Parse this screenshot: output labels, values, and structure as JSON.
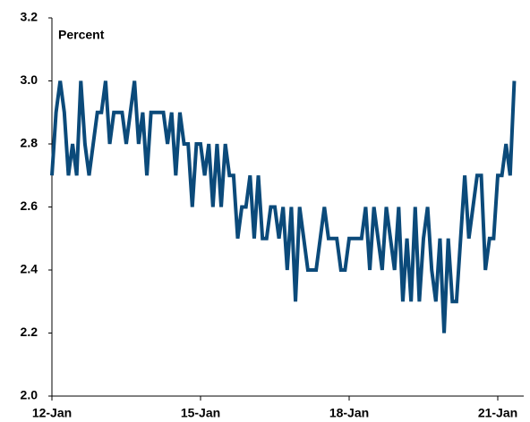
{
  "chart_data": {
    "type": "line",
    "y_label": "Percent",
    "categories": [
      "12-Jan",
      null,
      null,
      null,
      null,
      null,
      null,
      null,
      null,
      null,
      null,
      null,
      null,
      null,
      null,
      null,
      null,
      null,
      null,
      null,
      null,
      null,
      null,
      null,
      null,
      null,
      null,
      null,
      null,
      null,
      null,
      null,
      null,
      null,
      null,
      null,
      "15-Jan",
      null,
      null,
      null,
      null,
      null,
      null,
      null,
      null,
      null,
      null,
      null,
      null,
      null,
      null,
      null,
      null,
      null,
      null,
      null,
      null,
      null,
      null,
      null,
      null,
      null,
      null,
      null,
      null,
      null,
      null,
      null,
      null,
      null,
      null,
      null,
      "18-Jan",
      null,
      null,
      null,
      null,
      null,
      null,
      null,
      null,
      null,
      null,
      null,
      null,
      null,
      null,
      null,
      null,
      null,
      null,
      null,
      null,
      null,
      null,
      null,
      null,
      null,
      null,
      null,
      null,
      null,
      null,
      null,
      null,
      null,
      null,
      null,
      "21-Jan",
      null,
      null,
      null,
      null
    ],
    "values": [
      2.7,
      2.9,
      3.0,
      2.9,
      2.7,
      2.8,
      2.7,
      3.0,
      2.8,
      2.7,
      2.8,
      2.9,
      2.9,
      3.0,
      2.8,
      2.9,
      2.9,
      2.9,
      2.8,
      2.9,
      3.0,
      2.8,
      2.9,
      2.7,
      2.9,
      2.9,
      2.9,
      2.9,
      2.8,
      2.9,
      2.7,
      2.9,
      2.8,
      2.8,
      2.6,
      2.8,
      2.8,
      2.7,
      2.8,
      2.6,
      2.8,
      2.6,
      2.8,
      2.7,
      2.7,
      2.5,
      2.6,
      2.6,
      2.7,
      2.5,
      2.7,
      2.5,
      2.5,
      2.6,
      2.6,
      2.5,
      2.6,
      2.4,
      2.6,
      2.3,
      2.6,
      2.5,
      2.4,
      2.4,
      2.4,
      2.5,
      2.6,
      2.5,
      2.5,
      2.5,
      2.4,
      2.4,
      2.5,
      2.5,
      2.5,
      2.5,
      2.6,
      2.4,
      2.6,
      2.5,
      2.4,
      2.6,
      2.5,
      2.4,
      2.6,
      2.3,
      2.5,
      2.3,
      2.6,
      2.3,
      2.5,
      2.6,
      2.4,
      2.3,
      2.5,
      2.2,
      2.5,
      2.3,
      2.3,
      2.5,
      2.7,
      2.5,
      2.6,
      2.7,
      2.7,
      2.4,
      2.5,
      2.5,
      2.7,
      2.7,
      2.8,
      2.7,
      3.0
    ],
    "color": "#0b4a7a",
    "ylim": [
      2.0,
      3.2
    ],
    "yticks": [
      {
        "value": 2.0,
        "label": "2.0"
      },
      2.2,
      2.4,
      2.6,
      2.8,
      {
        "value": 3.0,
        "label": "3.0"
      },
      3.2
    ]
  }
}
